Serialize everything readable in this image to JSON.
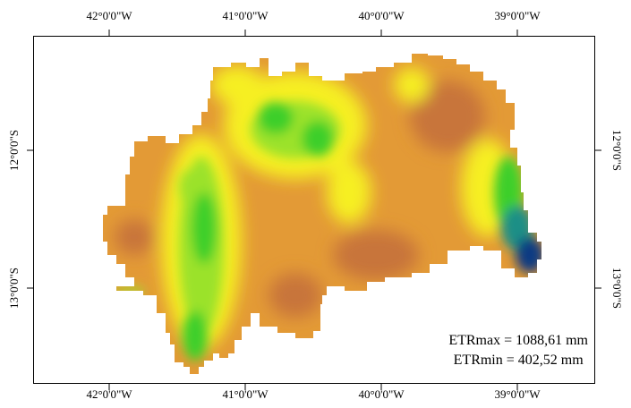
{
  "axes": {
    "longitude_ticks": [
      "42°0'0\"W",
      "41°0'0\"W",
      "40°0'0\"W",
      "39°0'0\"W"
    ],
    "latitude_ticks": [
      "12°0'0\"S",
      "13°0'0\"S"
    ]
  },
  "stats": {
    "max_label": "ETRmax = 1088,61 mm",
    "min_label": "ETRmin = 402,52 mm"
  },
  "colors": {
    "orange": "#e39a36",
    "dark_orange": "#c8743a",
    "yellow": "#f6ef22",
    "light_green": "#9be22a",
    "green": "#3ccf2c",
    "teal": "#1f8f86",
    "dark_blue": "#0d3b82"
  }
}
